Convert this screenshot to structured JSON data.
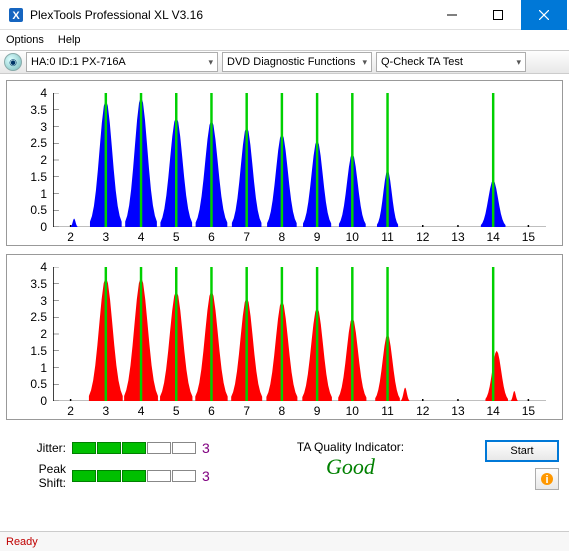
{
  "window": {
    "title": "PlexTools Professional XL V3.16"
  },
  "menu": {
    "options": "Options",
    "help": "Help"
  },
  "toolbar": {
    "device": "HA:0 ID:1   PX-716A",
    "func": "DVD Diagnostic Functions",
    "test": "Q-Check TA Test"
  },
  "chart": {
    "ylim": [
      0,
      4
    ],
    "yticks": [
      0,
      0.5,
      1,
      1.5,
      2,
      2.5,
      3,
      3.5,
      4
    ],
    "xlim": [
      1.5,
      15.5
    ],
    "xticks": [
      2,
      3,
      4,
      5,
      6,
      7,
      8,
      9,
      10,
      11,
      12,
      13,
      14,
      15
    ],
    "gridlines": [
      3,
      4,
      5,
      6,
      7,
      8,
      9,
      10,
      11,
      14
    ],
    "top": {
      "color": "#0000ff",
      "peaks": [
        {
          "c": 2.1,
          "h": 0.25,
          "w": 0.1
        },
        {
          "c": 3.0,
          "h": 3.8,
          "w": 0.45
        },
        {
          "c": 4.0,
          "h": 3.9,
          "w": 0.45
        },
        {
          "c": 5.0,
          "h": 3.3,
          "w": 0.45
        },
        {
          "c": 6.0,
          "h": 3.2,
          "w": 0.45
        },
        {
          "c": 7.0,
          "h": 3.0,
          "w": 0.42
        },
        {
          "c": 8.0,
          "h": 2.8,
          "w": 0.42
        },
        {
          "c": 9.0,
          "h": 2.6,
          "w": 0.4
        },
        {
          "c": 10.0,
          "h": 2.2,
          "w": 0.38
        },
        {
          "c": 11.0,
          "h": 1.7,
          "w": 0.3
        },
        {
          "c": 14.0,
          "h": 1.4,
          "w": 0.35
        }
      ]
    },
    "bottom": {
      "color": "#ff0000",
      "peaks": [
        {
          "c": 3.0,
          "h": 3.7,
          "w": 0.48
        },
        {
          "c": 4.0,
          "h": 3.7,
          "w": 0.48
        },
        {
          "c": 5.0,
          "h": 3.3,
          "w": 0.46
        },
        {
          "c": 6.0,
          "h": 3.3,
          "w": 0.46
        },
        {
          "c": 7.0,
          "h": 3.1,
          "w": 0.44
        },
        {
          "c": 8.0,
          "h": 3.0,
          "w": 0.44
        },
        {
          "c": 9.0,
          "h": 2.8,
          "w": 0.42
        },
        {
          "c": 10.0,
          "h": 2.5,
          "w": 0.4
        },
        {
          "c": 11.0,
          "h": 2.0,
          "w": 0.35
        },
        {
          "c": 11.5,
          "h": 0.4,
          "w": 0.12
        },
        {
          "c": 14.1,
          "h": 1.5,
          "w": 0.32
        },
        {
          "c": 14.6,
          "h": 0.3,
          "w": 0.1
        }
      ]
    }
  },
  "metrics": {
    "jitter": {
      "label": "Jitter:",
      "segments": 5,
      "filled": 3,
      "value": "3"
    },
    "peakshift": {
      "label": "Peak Shift:",
      "segments": 5,
      "filled": 3,
      "value": "3"
    }
  },
  "quality": {
    "label": "TA Quality Indicator:",
    "value": "Good",
    "color": "#008000"
  },
  "buttons": {
    "start": "Start"
  },
  "status": {
    "text": "Ready"
  }
}
